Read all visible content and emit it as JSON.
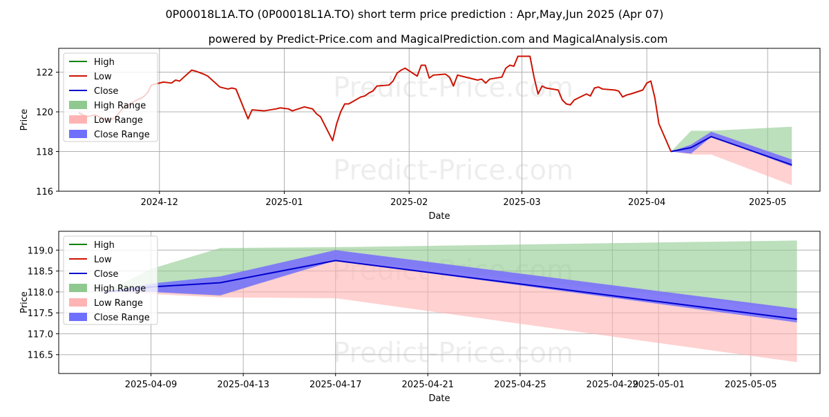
{
  "chart_data": [
    {
      "type": "line",
      "title": "0P00018L1A.TO (0P00018L1A.TO) short term price prediction : Apr,May,Jun 2025 (Apr 07)",
      "subtitle": "powered by Predict-Price.com and MagicalPrediction.com and MagicalAnalysis.com",
      "xlabel": "Date",
      "ylabel": "Price",
      "xlim": [
        "2024-11-06",
        "2025-05-14"
      ],
      "ylim": [
        116,
        123.2
      ],
      "grid": true,
      "legend_position": "top-left",
      "x_ticks": [
        "2024-12",
        "2025-01",
        "2025-02",
        "2025-03",
        "2025-04",
        "2025-05"
      ],
      "y_ticks": [
        116,
        118,
        120,
        122
      ],
      "legend": [
        "High",
        "Low",
        "Close",
        "High Range",
        "Low Range",
        "Close Range"
      ],
      "watermark": "Predict-Price.com",
      "history": {
        "x": [
          "2024-11-11",
          "2024-11-13",
          "2024-11-15",
          "2024-11-18",
          "2024-11-20",
          "2024-11-22",
          "2024-11-25",
          "2024-11-27",
          "2024-11-28",
          "2024-11-29",
          "2024-12-02",
          "2024-12-04",
          "2024-12-05",
          "2024-12-06",
          "2024-12-09",
          "2024-12-10",
          "2024-12-12",
          "2024-12-13",
          "2024-12-16",
          "2024-12-18",
          "2024-12-19",
          "2024-12-20",
          "2024-12-23",
          "2024-12-24",
          "2024-12-27",
          "2024-12-30",
          "2024-12-31",
          "2025-01-02",
          "2025-01-03",
          "2025-01-06",
          "2025-01-07",
          "2025-01-08",
          "2025-01-09",
          "2025-01-10",
          "2025-01-13",
          "2025-01-14",
          "2025-01-15",
          "2025-01-16",
          "2025-01-17",
          "2025-01-20",
          "2025-01-21",
          "2025-01-22",
          "2025-01-23",
          "2025-01-24",
          "2025-01-27",
          "2025-01-28",
          "2025-01-29",
          "2025-01-30",
          "2025-01-31",
          "2025-02-03",
          "2025-02-04",
          "2025-02-05",
          "2025-02-06",
          "2025-02-07",
          "2025-02-10",
          "2025-02-11",
          "2025-02-12",
          "2025-02-13",
          "2025-02-14",
          "2025-02-18",
          "2025-02-19",
          "2025-02-20",
          "2025-02-21",
          "2025-02-24",
          "2025-02-25",
          "2025-02-26",
          "2025-02-27",
          "2025-02-28",
          "2025-03-03",
          "2025-03-04",
          "2025-03-05",
          "2025-03-06",
          "2025-03-07",
          "2025-03-10",
          "2025-03-11",
          "2025-03-12",
          "2025-03-13",
          "2025-03-14",
          "2025-03-17",
          "2025-03-18",
          "2025-03-19",
          "2025-03-20",
          "2025-03-21",
          "2025-03-24",
          "2025-03-25",
          "2025-03-26",
          "2025-03-27",
          "2025-03-28",
          "2025-03-31",
          "2025-04-01",
          "2025-04-02",
          "2025-04-03",
          "2025-04-04",
          "2025-04-07"
        ],
        "close": [
          119.95,
          119.75,
          119.85,
          119.55,
          119.7,
          120.2,
          120.55,
          120.75,
          120.95,
          121.35,
          121.5,
          121.45,
          121.6,
          121.55,
          122.1,
          122.05,
          121.9,
          121.8,
          121.25,
          121.15,
          121.2,
          121.15,
          119.65,
          120.1,
          120.05,
          120.15,
          120.2,
          120.15,
          120.05,
          120.25,
          120.2,
          120.15,
          119.9,
          119.75,
          118.55,
          119.4,
          120.0,
          120.4,
          120.4,
          120.75,
          120.8,
          120.95,
          121.05,
          121.3,
          121.35,
          121.55,
          121.95,
          122.1,
          122.2,
          121.8,
          122.35,
          122.35,
          121.7,
          121.85,
          121.9,
          121.75,
          121.3,
          121.85,
          121.8,
          121.6,
          121.65,
          121.45,
          121.65,
          121.75,
          122.2,
          122.35,
          122.3,
          122.8,
          122.8,
          121.75,
          120.9,
          121.3,
          121.2,
          121.1,
          120.6,
          120.4,
          120.35,
          120.6,
          120.9,
          120.8,
          121.2,
          121.25,
          121.15,
          121.1,
          121.05,
          120.75,
          120.85,
          120.9,
          121.1,
          121.45,
          121.55,
          120.7,
          119.4,
          118.0
        ]
      },
      "forecast": {
        "x": [
          "2025-04-07",
          "2025-04-12",
          "2025-04-17",
          "2025-05-07"
        ],
        "high_range_upper": [
          118.0,
          119.05,
          119.05,
          119.25
        ],
        "low_range_lower": [
          118.0,
          117.85,
          117.85,
          116.3
        ],
        "close_range_upper": [
          118.0,
          118.35,
          119.0,
          117.6
        ],
        "close_range_lower": [
          118.0,
          117.9,
          118.75,
          117.25
        ],
        "close": [
          118.0,
          118.2,
          118.75,
          117.33
        ]
      }
    },
    {
      "type": "line",
      "xlabel": "Date",
      "ylabel": "Price",
      "xlim": [
        "2025-04-05",
        "2025-05-08"
      ],
      "ylim": [
        116.05,
        119.45
      ],
      "grid": true,
      "legend_position": "top-left",
      "x_ticks": [
        "2025-04-09",
        "2025-04-13",
        "2025-04-17",
        "2025-04-21",
        "2025-04-25",
        "2025-04-29",
        "2025-05-01",
        "2025-05-05"
      ],
      "y_ticks": [
        116.5,
        117.0,
        117.5,
        118.0,
        118.5,
        119.0
      ],
      "y_tick_labels": [
        "116.5",
        "117.0",
        "117.5",
        "118.0",
        "118.5",
        "119.0"
      ],
      "legend": [
        "High",
        "Low",
        "Close",
        "High Range",
        "Low Range",
        "Close Range"
      ],
      "watermark": "Predict-Price.com",
      "forecast": {
        "x": [
          "2025-04-07",
          "2025-04-09",
          "2025-04-12",
          "2025-04-17",
          "2025-05-07"
        ],
        "high_range_upper": [
          118.0,
          118.55,
          119.05,
          119.07,
          119.23
        ],
        "high_range_lower": [
          118.0,
          118.0,
          117.9,
          118.8,
          117.55
        ],
        "low_range_upper": [
          118.0,
          118.1,
          118.35,
          119.0,
          117.6
        ],
        "low_range_lower": [
          118.0,
          117.95,
          117.87,
          117.85,
          116.32
        ],
        "close_range_upper": [
          118.0,
          118.2,
          118.37,
          119.0,
          117.6
        ],
        "close_range_lower": [
          118.0,
          118.0,
          117.92,
          118.75,
          117.27
        ],
        "close": [
          118.0,
          118.12,
          118.22,
          118.75,
          117.35
        ]
      }
    }
  ],
  "colors": {
    "high": "#008000",
    "low": "#cc1100",
    "close": "#0000cc",
    "high_range": "#8fc98f",
    "low_range": "#ffb3b3",
    "close_range": "#7070ff",
    "grid": "#b0b0b0"
  }
}
